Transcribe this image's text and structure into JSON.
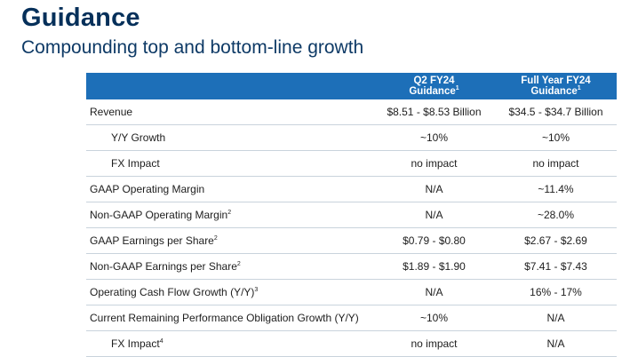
{
  "page": {
    "title": "Guidance",
    "subtitle": "Compounding top and bottom-line growth"
  },
  "table": {
    "columns": [
      {
        "line1": "Q2 FY24",
        "line2": "Guidance",
        "footnote": "1"
      },
      {
        "line1": "Full Year FY24",
        "line2": "Guidance",
        "footnote": "1"
      }
    ],
    "rows": [
      {
        "label": "Revenue",
        "footnote": "",
        "q2": "$8.51 - $8.53 Billion",
        "fy": "$34.5 - $34.7 Billion",
        "indent": false
      },
      {
        "label": "Y/Y Growth",
        "footnote": "",
        "q2": "~10%",
        "fy": "~10%",
        "indent": true
      },
      {
        "label": "FX Impact",
        "footnote": "",
        "q2": "no impact",
        "fy": "no impact",
        "indent": true
      },
      {
        "label": "GAAP Operating Margin",
        "footnote": "",
        "q2": "N/A",
        "fy": "~11.4%",
        "indent": false
      },
      {
        "label": "Non-GAAP Operating Margin",
        "footnote": "2",
        "q2": "N/A",
        "fy": "~28.0%",
        "indent": false
      },
      {
        "label": "GAAP Earnings per Share",
        "footnote": "2",
        "q2": "$0.79 - $0.80",
        "fy": "$2.67 - $2.69",
        "indent": false
      },
      {
        "label": "Non-GAAP Earnings per Share",
        "footnote": "2",
        "q2": "$1.89 - $1.90",
        "fy": "$7.41 - $7.43",
        "indent": false
      },
      {
        "label": "Operating Cash Flow Growth (Y/Y)",
        "footnote": "3",
        "q2": "N/A",
        "fy": "16% - 17%",
        "indent": false
      },
      {
        "label": "Current Remaining Performance Obligation Growth (Y/Y)",
        "footnote": "",
        "q2": "~10%",
        "fy": "N/A",
        "indent": false
      },
      {
        "label": "FX Impact",
        "footnote": "4",
        "q2": "no impact",
        "fy": "N/A",
        "indent": true
      }
    ]
  }
}
